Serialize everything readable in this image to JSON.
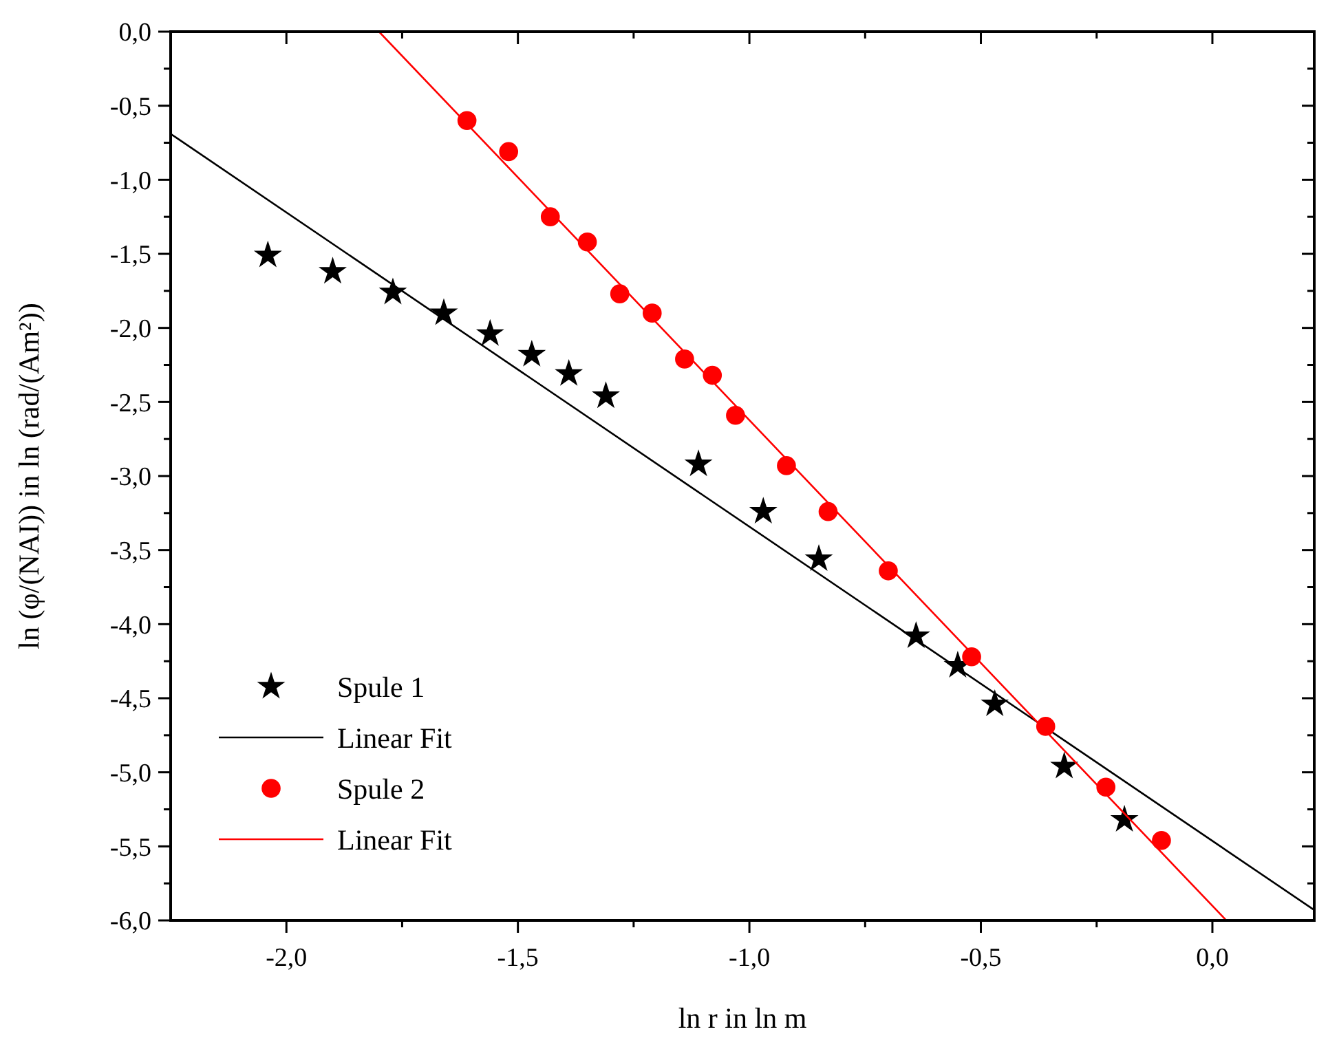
{
  "chart_data": {
    "type": "scatter",
    "xlabel": "ln r in ln m",
    "ylabel": "ln (φ/(NAI)) in ln (rad/(Am²))",
    "xlim": [
      -2.25,
      0.22
    ],
    "ylim": [
      -6,
      0
    ],
    "xticks": [
      {
        "value": -2,
        "label": "-2,0"
      },
      {
        "value": -1.75,
        "label": null
      },
      {
        "value": -1.5,
        "label": "-1,5"
      },
      {
        "value": -1.25,
        "label": null
      },
      {
        "value": -1,
        "label": "-1,0"
      },
      {
        "value": -0.75,
        "label": null
      },
      {
        "value": -0.5,
        "label": "-0,5"
      },
      {
        "value": -0.25,
        "label": null
      },
      {
        "value": 0,
        "label": "0,0"
      }
    ],
    "yticks": [
      {
        "value": 0,
        "label": "0,0"
      },
      {
        "value": -0.25,
        "label": null
      },
      {
        "value": -0.5,
        "label": "-0,5"
      },
      {
        "value": -0.75,
        "label": null
      },
      {
        "value": -1,
        "label": "-1,0"
      },
      {
        "value": -1.25,
        "label": null
      },
      {
        "value": -1.5,
        "label": "-1,5"
      },
      {
        "value": -1.75,
        "label": null
      },
      {
        "value": -2,
        "label": "-2,0"
      },
      {
        "value": -2.25,
        "label": null
      },
      {
        "value": -2.5,
        "label": "-2,5"
      },
      {
        "value": -2.75,
        "label": null
      },
      {
        "value": -3,
        "label": "-3,0"
      },
      {
        "value": -3.25,
        "label": null
      },
      {
        "value": -3.5,
        "label": "-3,5"
      },
      {
        "value": -3.75,
        "label": null
      },
      {
        "value": -4,
        "label": "-4,0"
      },
      {
        "value": -4.25,
        "label": null
      },
      {
        "value": -4.5,
        "label": "-4,5"
      },
      {
        "value": -4.75,
        "label": null
      },
      {
        "value": -5,
        "label": "-5,0"
      },
      {
        "value": -5.25,
        "label": null
      },
      {
        "value": -5.5,
        "label": "-5,5"
      },
      {
        "value": -5.75,
        "label": null
      },
      {
        "value": -6,
        "label": "-6,0"
      }
    ],
    "legend": "bottom left",
    "series": [
      {
        "name": "Spule 1",
        "marker": "star",
        "color": "#000000",
        "x": [
          -2.04,
          -1.9,
          -1.77,
          -1.66,
          -1.56,
          -1.47,
          -1.39,
          -1.31,
          -1.11,
          -0.97,
          -0.85,
          -0.64,
          -0.55,
          -0.47,
          -0.32,
          -0.19
        ],
        "values": [
          -1.51,
          -1.62,
          -1.76,
          -1.9,
          -2.04,
          -2.18,
          -2.31,
          -2.46,
          -2.92,
          -3.24,
          -3.56,
          -4.08,
          -4.28,
          -4.54,
          -4.96,
          -5.32
        ]
      },
      {
        "name": "Linear Fit",
        "type": "line",
        "marker": "none",
        "color": "#000000",
        "x": [
          -2.25,
          0.22
        ],
        "values": [
          -0.69,
          -5.93
        ]
      },
      {
        "name": "Spule 2",
        "marker": "circle",
        "color": "#ff0000",
        "x": [
          -1.61,
          -1.52,
          -1.43,
          -1.35,
          -1.28,
          -1.21,
          -1.14,
          -1.08,
          -1.03,
          -0.92,
          -0.83,
          -0.7,
          -0.52,
          -0.36,
          -0.23,
          -0.11
        ],
        "values": [
          -0.6,
          -0.81,
          -1.25,
          -1.42,
          -1.77,
          -1.9,
          -2.21,
          -2.32,
          -2.59,
          -2.93,
          -3.24,
          -3.64,
          -4.22,
          -4.69,
          -5.1,
          -5.46
        ]
      },
      {
        "name": "Linear Fit",
        "type": "line",
        "marker": "none",
        "color": "#ff0000",
        "x": [
          -1.8,
          0.03
        ],
        "values": [
          0,
          -6
        ]
      }
    ]
  }
}
